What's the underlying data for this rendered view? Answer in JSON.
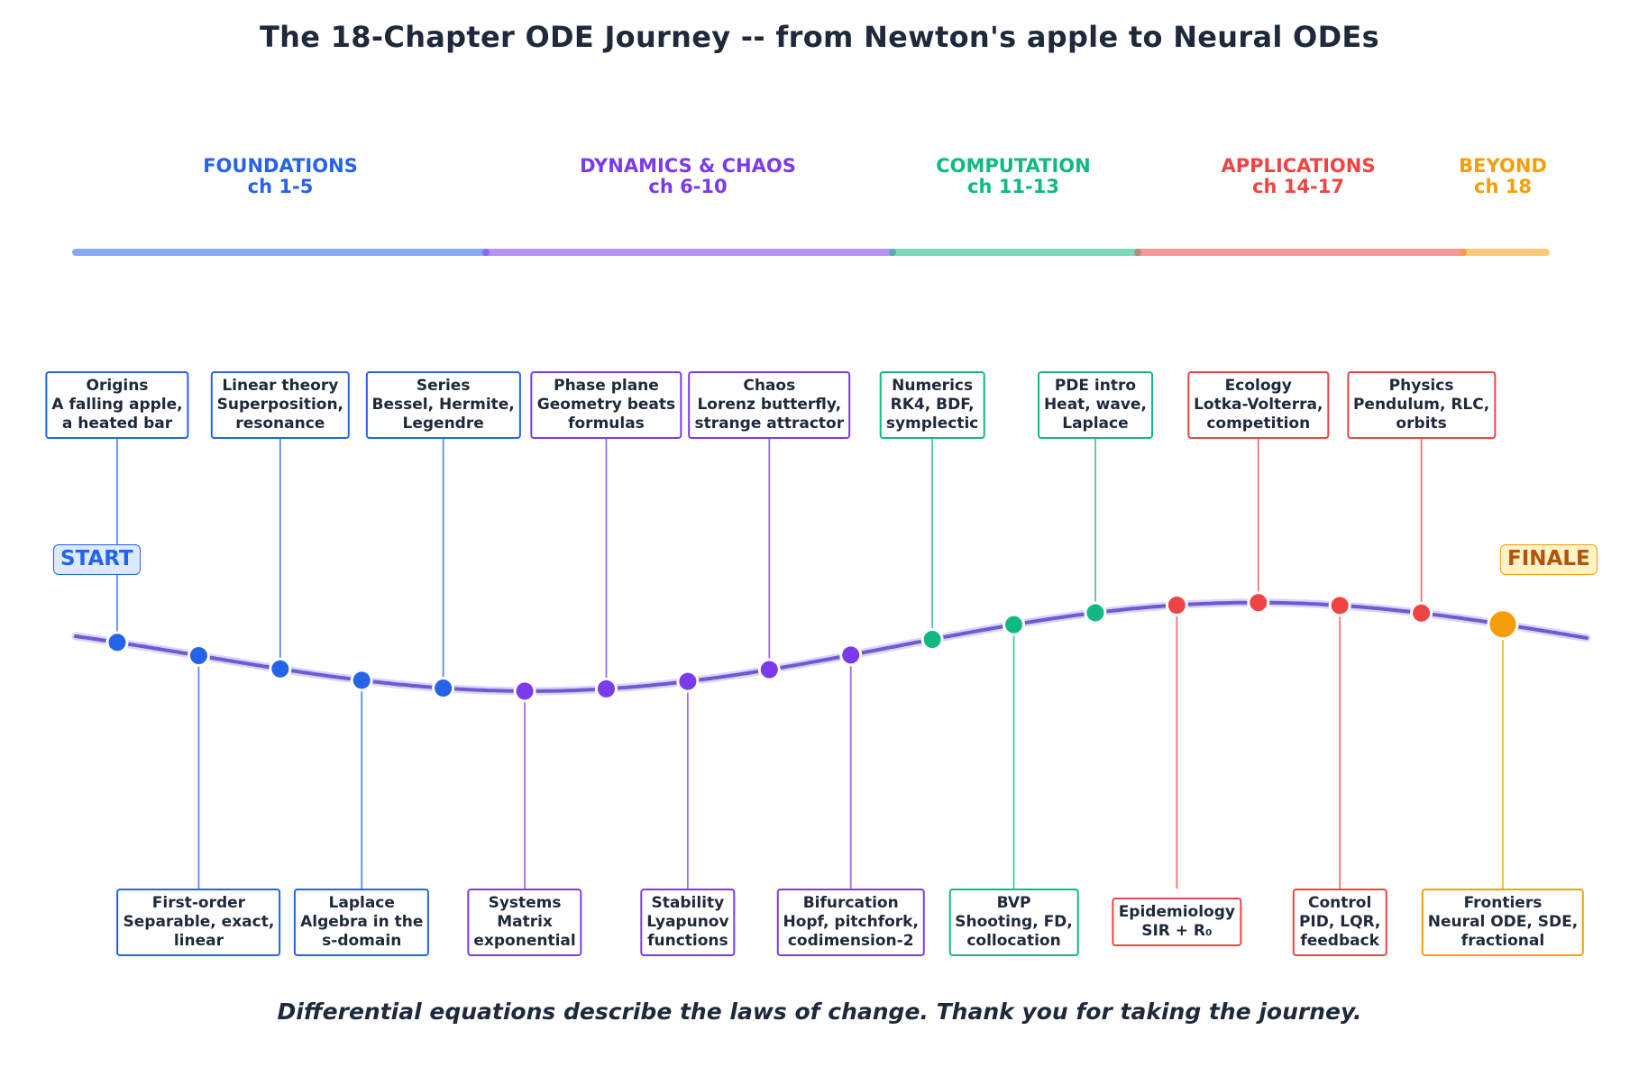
{
  "title": "The 18-Chapter ODE Journey  --  from Newton's apple to Neural ODEs",
  "footer": "Differential equations describe the laws of change.  Thank you for taking the journey.",
  "start_label": "START",
  "finale_label": "FINALE",
  "colors": {
    "foundations": "#2563eb",
    "dynamics": "#7c3aed",
    "computation": "#10b981",
    "applications": "#ef4444",
    "beyond": "#f59e0b",
    "path": "#6d5bd0",
    "text": "#1e293b"
  },
  "phases": [
    {
      "name": "FOUNDATIONS",
      "chapters": "ch 1-5",
      "color": "#2563eb"
    },
    {
      "name": "DYNAMICS & CHAOS",
      "chapters": "ch 6-10",
      "color": "#7c3aed"
    },
    {
      "name": "COMPUTATION",
      "chapters": "ch 11-13",
      "color": "#10b981"
    },
    {
      "name": "APPLICATIONS",
      "chapters": "ch 14-17",
      "color": "#ef4444"
    },
    {
      "name": "BEYOND",
      "chapters": "ch 18",
      "color": "#f59e0b"
    }
  ],
  "chapters": [
    {
      "n": 1,
      "color": "#2563eb",
      "side": "top",
      "lines": [
        "Origins",
        "A falling apple,",
        "a heated bar"
      ]
    },
    {
      "n": 2,
      "color": "#2563eb",
      "side": "bottom",
      "lines": [
        "First-order",
        "Separable, exact,",
        "linear"
      ]
    },
    {
      "n": 3,
      "color": "#2563eb",
      "side": "top",
      "lines": [
        "Linear theory",
        "Superposition,",
        "resonance"
      ]
    },
    {
      "n": 4,
      "color": "#2563eb",
      "side": "bottom",
      "lines": [
        "Laplace",
        "Algebra in the",
        "s-domain"
      ]
    },
    {
      "n": 5,
      "color": "#2563eb",
      "side": "top",
      "lines": [
        "Series",
        "Bessel, Hermite,",
        "Legendre"
      ]
    },
    {
      "n": 6,
      "color": "#7c3aed",
      "side": "bottom",
      "lines": [
        "Systems",
        "Matrix",
        "exponential"
      ]
    },
    {
      "n": 7,
      "color": "#7c3aed",
      "side": "top",
      "lines": [
        "Phase plane",
        "Geometry beats",
        "formulas"
      ]
    },
    {
      "n": 8,
      "color": "#7c3aed",
      "side": "bottom",
      "lines": [
        "Stability",
        "Lyapunov",
        "functions"
      ]
    },
    {
      "n": 9,
      "color": "#7c3aed",
      "side": "top",
      "lines": [
        "Chaos",
        "Lorenz butterfly,",
        "strange attractor"
      ]
    },
    {
      "n": 10,
      "color": "#7c3aed",
      "side": "bottom",
      "lines": [
        "Bifurcation",
        "Hopf, pitchfork,",
        "codimension-2"
      ]
    },
    {
      "n": 11,
      "color": "#10b981",
      "side": "top",
      "lines": [
        "Numerics",
        "RK4, BDF,",
        "symplectic"
      ]
    },
    {
      "n": 12,
      "color": "#10b981",
      "side": "bottom",
      "lines": [
        "BVP",
        "Shooting, FD,",
        "collocation"
      ]
    },
    {
      "n": 13,
      "color": "#10b981",
      "side": "top",
      "lines": [
        "PDE intro",
        "Heat, wave,",
        "Laplace"
      ]
    },
    {
      "n": 14,
      "color": "#ef4444",
      "side": "bottom",
      "lines": [
        "Epidemiology",
        "SIR + R₀"
      ]
    },
    {
      "n": 15,
      "color": "#ef4444",
      "side": "top",
      "lines": [
        "Ecology",
        "Lotka-Volterra,",
        "competition"
      ]
    },
    {
      "n": 16,
      "color": "#ef4444",
      "side": "bottom",
      "lines": [
        "Control",
        "PID, LQR,",
        "feedback"
      ]
    },
    {
      "n": 17,
      "color": "#ef4444",
      "side": "top",
      "lines": [
        "Physics",
        "Pendulum, RLC,",
        "orbits"
      ]
    },
    {
      "n": 18,
      "color": "#f59e0b",
      "side": "bottom",
      "lines": [
        "Frontiers",
        "Neural ODE, SDE,",
        "fractional"
      ]
    }
  ]
}
